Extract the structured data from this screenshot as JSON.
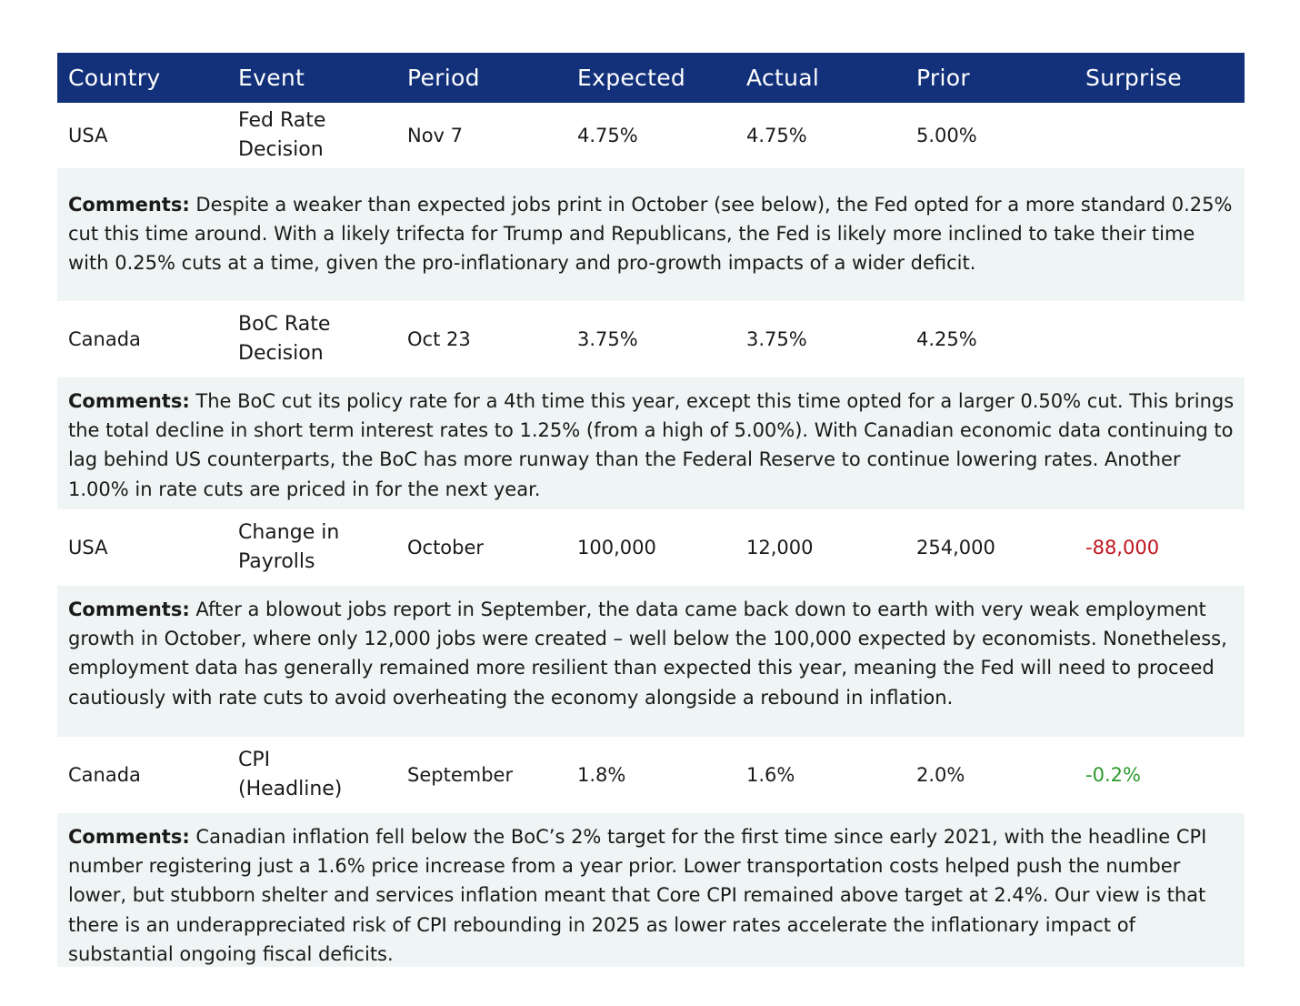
{
  "headers": [
    "Country",
    "Event",
    "Period",
    "Expected",
    "Actual",
    "Prior",
    "Surprise"
  ],
  "rows": [
    {
      "country": "USA",
      "event_line1": "Fed Rate",
      "event_line2": "Decision",
      "period": "Nov 7",
      "expected": "4.75%",
      "actual": "4.75%",
      "prior": "5.00%",
      "surprise": "",
      "comment_label": "Comments:",
      "comment": " Despite a weaker than expected jobs print in October (see below), the Fed opted for a more standard 0.25% cut this time around. With a likely trifecta for Trump and Republicans, the Fed is likely more inclined to take their time with 0.25% cuts at a time, given the pro-inflationary and pro-growth impacts of a wider deficit."
    },
    {
      "country": "Canada",
      "event_line1": "BoC Rate",
      "event_line2": "Decision",
      "period": "Oct 23",
      "expected": "3.75%",
      "actual": "3.75%",
      "prior": "4.25%",
      "surprise": "",
      "comment_label": "Comments:",
      "comment": " The BoC cut its policy rate for a 4th time this year, except this time opted for a larger 0.50% cut. This brings the total decline in short term interest rates to 1.25% (from a high of 5.00%). With Canadian economic data continuing to lag behind US counterparts, the BoC has more runway than the Federal Reserve to continue lowering rates. Another 1.00% in rate cuts are priced in for the next year."
    },
    {
      "country": "USA",
      "event_line1": "Change in",
      "event_line2": "Payrolls",
      "period": "October",
      "expected": "100,000",
      "actual": "12,000",
      "prior": "254,000",
      "surprise": "-88,000",
      "surprise_color": "#c0141e",
      "comment_label": "Comments:",
      "comment": " After a blowout jobs report in September, the data came back down to earth with very weak employment growth in October, where only 12,000 jobs were created – well below the 100,000 expected by economists. Nonetheless, employment data has generally remained more resilient than expected this year, meaning the Fed will need to proceed cautiously with rate cuts to avoid overheating the economy alongside a rebound in inflation."
    },
    {
      "country": "Canada",
      "event_line1": "CPI",
      "event_line2": "(Headline)",
      "period": "September",
      "expected": "1.8%",
      "actual": "1.6%",
      "prior": "2.0%",
      "surprise": "-0.2%",
      "surprise_color": "#2e9a2e",
      "comment_label": "Comments:",
      "comment": " Canadian inflation fell below the BoC’s 2% target for the first time since early 2021, with the headline CPI number registering just a 1.6% price increase from a year prior. Lower transportation costs helped push the number lower, but stubborn shelter and services inflation meant that Core CPI remained above target at 2.4%. Our view is that there is an underappreciated risk of CPI rebounding in 2025 as lower rates accelerate the inflationary impact of substantial ongoing fiscal deficits."
    }
  ]
}
